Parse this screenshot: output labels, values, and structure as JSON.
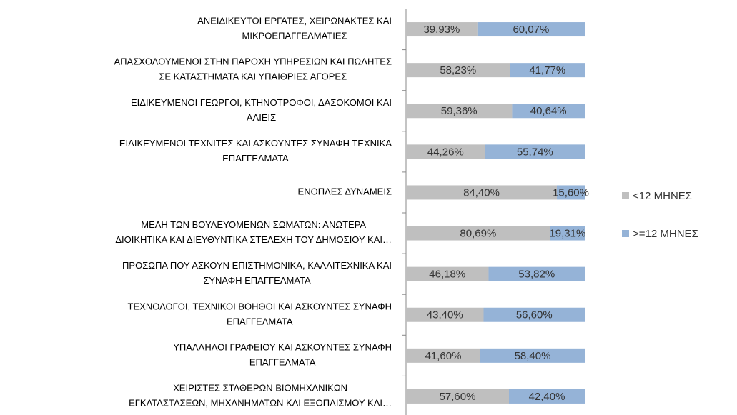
{
  "chart_data": {
    "type": "stacked_bar_horizontal",
    "categories": [
      "ΑΝΕΙΔΙΚΕΥΤΟΙ ΕΡΓΑΤΕΣ, ΧΕΙΡΩΝΑΚΤΕΣ ΚΑΙ\nΜΙΚΡΟΕΠΑΓΓΕΛΜΑΤΙΕΣ",
      "ΑΠΑΣΧΟΛΟΥΜΕΝΟΙ ΣΤΗΝ ΠΑΡΟΧΗ ΥΠΗΡΕΣΙΩΝ ΚΑΙ ΠΩΛΗΤΕΣ\nΣΕ ΚΑΤΑΣΤΗΜΑΤΑ ΚΑΙ ΥΠΑΙΘΡΙΕΣ ΑΓΟΡΕΣ",
      "ΕΙΔΙΚΕΥΜΕΝΟΙ ΓΕΩΡΓΟΙ,  ΚΤΗΝΟΤΡΟΦΟΙ,  ΔΑΣΟΚΟΜΟΙ ΚΑΙ\nΑΛΙΕΙΣ",
      "ΕΙΔΙΚΕΥΜΕΝΟΙ ΤΕΧΝΙΤΕΣ ΚΑΙ ΑΣΚΟΥΝΤΕΣ ΣΥΝΑΦΗ ΤΕΧΝΙΚΑ\nΕΠΑΓΓΕΛΜΑΤΑ",
      "ΕΝΟΠΛΕΣ ΔΥΝΑΜΕΙΣ",
      "ΜΕΛΗ ΤΩΝ ΒΟΥΛΕΥΟΜΕΝΩΝ ΣΩΜΑΤΩΝ:  ΑΝΩΤΕΡΑ\nΔΙΟΙΚΗΤΙΚΑ ΚΑΙ ΔΙΕΥΘΥΝΤΙΚΑ ΣΤΕΛΕΧΗ ΤΟΥ ΔΗΜΟΣΙΟΥ ΚΑΙ…",
      "ΠΡΟΣΩΠΑ ΠΟΥ ΑΣΚΟΥΝ ΕΠΙΣΤΗΜΟΝΙΚΑ, ΚΑΛΛΙΤΕΧΝΙΚΑ ΚΑΙ\nΣΥΝΑΦΗ ΕΠΑΓΓΕΛΜΑΤΑ",
      "ΤΕΧΝΟΛΟΓΟΙ, ΤΕΧΝΙΚΟΙ ΒΟΗΘΟΙ ΚΑΙ ΑΣΚΟΥΝΤΕΣ ΣΥΝΑΦΗ\nΕΠΑΓΓΕΛΜΑΤΑ",
      "ΥΠΑΛΛΗΛΟΙ ΓΡΑΦΕΙΟΥ ΚΑΙ ΑΣΚΟΥΝΤΕΣ ΣΥΝΑΦΗ\nΕΠΑΓΓΕΛΜΑΤΑ",
      "ΧΕΙΡΙΣΤΕΣ ΣΤΑΘΕΡΩΝ ΒΙΟΜΗΧΑΝΙΚΩΝ\nΕΓΚΑΤΑΣΤΑΣΕΩΝ, ΜΗΧΑΝΗΜΑΤΩΝ ΚΑΙ ΕΞΟΠΛΙΣΜΟΥ ΚΑΙ…"
    ],
    "series": [
      {
        "name": "<12 ΜΗΝΕΣ",
        "color": "#bfbfbf",
        "values": [
          39.93,
          58.23,
          59.36,
          44.26,
          84.4,
          80.69,
          46.18,
          43.4,
          41.6,
          57.6
        ],
        "value_labels": [
          "39,93%",
          "58,23%",
          "59,36%",
          "44,26%",
          "84,40%",
          "80,69%",
          "46,18%",
          "43,40%",
          "41,60%",
          "57,60%"
        ]
      },
      {
        "name": ">=12 ΜΗΝΕΣ",
        "color": "#95b3d7",
        "values": [
          60.07,
          41.77,
          40.64,
          55.74,
          15.6,
          19.31,
          53.82,
          56.6,
          58.4,
          42.4
        ],
        "value_labels": [
          "60,07%",
          "41,77%",
          "40,64%",
          "55,74%",
          "15,60%",
          "19,31%",
          "53,82%",
          "56,60%",
          "58,40%",
          "42,40%"
        ]
      }
    ],
    "xlim": [
      0,
      100
    ],
    "legend": "right"
  }
}
